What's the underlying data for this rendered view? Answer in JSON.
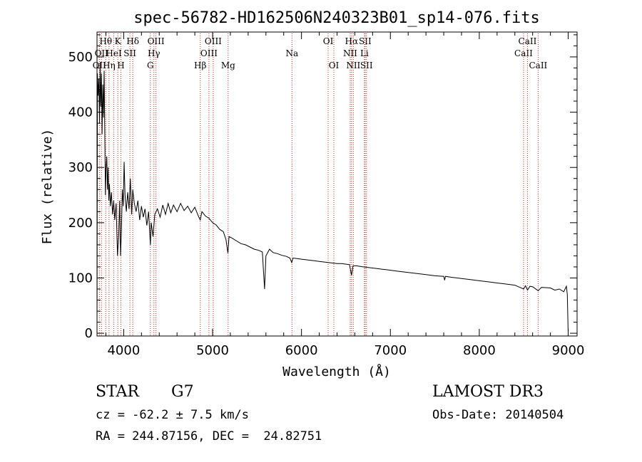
{
  "chart_data": {
    "type": "line",
    "title": "spec-56782-HD162506N240323B01_sp14-076.fits",
    "xlabel": "Wavelength (Å)",
    "ylabel": "Flux (relative)",
    "xlim": [
      3700,
      9100
    ],
    "ylim": [
      -5,
      545
    ],
    "xticks": [
      4000,
      5000,
      6000,
      7000,
      8000,
      9000
    ],
    "xtick_labels": [
      "4000",
      "5000",
      "6000",
      "7000",
      "8000",
      "9000"
    ],
    "yticks": [
      0,
      100,
      200,
      300,
      400,
      500
    ],
    "ytick_labels": [
      "0",
      "100",
      "200",
      "300",
      "400",
      "500"
    ],
    "grid": false,
    "series": [
      {
        "name": "flux",
        "points": [
          [
            3700,
            0
          ],
          [
            3705,
            470
          ],
          [
            3712,
            430
          ],
          [
            3720,
            460
          ],
          [
            3728,
            380
          ],
          [
            3735,
            490
          ],
          [
            3742,
            410
          ],
          [
            3750,
            470
          ],
          [
            3757,
            360
          ],
          [
            3765,
            450
          ],
          [
            3772,
            390
          ],
          [
            3780,
            475
          ],
          [
            3788,
            350
          ],
          [
            3795,
            250
          ],
          [
            3802,
            300
          ],
          [
            3810,
            320
          ],
          [
            3818,
            260
          ],
          [
            3825,
            300
          ],
          [
            3832,
            240
          ],
          [
            3840,
            270
          ],
          [
            3850,
            230
          ],
          [
            3862,
            255
          ],
          [
            3875,
            215
          ],
          [
            3888,
            240
          ],
          [
            3900,
            205
          ],
          [
            3915,
            235
          ],
          [
            3930,
            140
          ],
          [
            3945,
            180
          ],
          [
            3955,
            240
          ],
          [
            3965,
            140
          ],
          [
            3975,
            190
          ],
          [
            3985,
            260
          ],
          [
            3995,
            230
          ],
          [
            4005,
            310
          ],
          [
            4015,
            250
          ],
          [
            4030,
            220
          ],
          [
            4045,
            255
          ],
          [
            4060,
            225
          ],
          [
            4075,
            280
          ],
          [
            4090,
            215
          ],
          [
            4102,
            260
          ],
          [
            4120,
            235
          ],
          [
            4140,
            220
          ],
          [
            4160,
            240
          ],
          [
            4180,
            205
          ],
          [
            4200,
            230
          ],
          [
            4220,
            210
          ],
          [
            4240,
            225
          ],
          [
            4260,
            195
          ],
          [
            4280,
            220
          ],
          [
            4300,
            160
          ],
          [
            4310,
            200
          ],
          [
            4330,
            175
          ],
          [
            4350,
            215
          ],
          [
            4380,
            225
          ],
          [
            4410,
            210
          ],
          [
            4440,
            232
          ],
          [
            4470,
            215
          ],
          [
            4500,
            235
          ],
          [
            4530,
            218
          ],
          [
            4560,
            232
          ],
          [
            4600,
            220
          ],
          [
            4640,
            235
          ],
          [
            4680,
            222
          ],
          [
            4720,
            230
          ],
          [
            4760,
            218
          ],
          [
            4800,
            228
          ],
          [
            4840,
            212
          ],
          [
            4861,
            205
          ],
          [
            4880,
            220
          ],
          [
            4920,
            212
          ],
          [
            4960,
            208
          ],
          [
            5000,
            200
          ],
          [
            5040,
            196
          ],
          [
            5080,
            188
          ],
          [
            5120,
            184
          ],
          [
            5150,
            170
          ],
          [
            5172,
            145
          ],
          [
            5185,
            175
          ],
          [
            5220,
            172
          ],
          [
            5270,
            167
          ],
          [
            5320,
            162
          ],
          [
            5370,
            160
          ],
          [
            5420,
            156
          ],
          [
            5470,
            152
          ],
          [
            5520,
            150
          ],
          [
            5560,
            147
          ],
          [
            5575,
            105
          ],
          [
            5585,
            80
          ],
          [
            5600,
            140
          ],
          [
            5640,
            152
          ],
          [
            5680,
            146
          ],
          [
            5730,
            144
          ],
          [
            5780,
            141
          ],
          [
            5830,
            139
          ],
          [
            5870,
            136
          ],
          [
            5890,
            128
          ],
          [
            5905,
            136
          ],
          [
            5950,
            135
          ],
          [
            6000,
            134
          ],
          [
            6050,
            133
          ],
          [
            6100,
            132
          ],
          [
            6150,
            131
          ],
          [
            6200,
            130
          ],
          [
            6250,
            129
          ],
          [
            6300,
            128
          ],
          [
            6350,
            127
          ],
          [
            6400,
            126
          ],
          [
            6450,
            126
          ],
          [
            6500,
            125
          ],
          [
            6540,
            124
          ],
          [
            6563,
            105
          ],
          [
            6580,
            122
          ],
          [
            6620,
            122
          ],
          [
            6660,
            121
          ],
          [
            6700,
            120
          ],
          [
            6750,
            119
          ],
          [
            6800,
            118
          ],
          [
            6850,
            117
          ],
          [
            6900,
            116
          ],
          [
            6950,
            115
          ],
          [
            7000,
            114
          ],
          [
            7100,
            112
          ],
          [
            7200,
            110
          ],
          [
            7300,
            108
          ],
          [
            7400,
            106
          ],
          [
            7500,
            104
          ],
          [
            7600,
            103
          ],
          [
            7610,
            96
          ],
          [
            7620,
            103
          ],
          [
            7700,
            101
          ],
          [
            7800,
            99
          ],
          [
            7900,
            97
          ],
          [
            8000,
            95
          ],
          [
            8100,
            93
          ],
          [
            8200,
            91
          ],
          [
            8300,
            89
          ],
          [
            8400,
            87
          ],
          [
            8498,
            80
          ],
          [
            8520,
            86
          ],
          [
            8542,
            78
          ],
          [
            8570,
            85
          ],
          [
            8600,
            84
          ],
          [
            8662,
            77
          ],
          [
            8700,
            83
          ],
          [
            8800,
            82
          ],
          [
            8850,
            78
          ],
          [
            8900,
            80
          ],
          [
            8950,
            75
          ],
          [
            8980,
            85
          ],
          [
            8990,
            70
          ],
          [
            9000,
            0
          ]
        ]
      }
    ],
    "line_markers": [
      {
        "wavelength": 3727,
        "label": "OII",
        "row": 2
      },
      {
        "wavelength": 3750,
        "label": "OII",
        "row": 1
      },
      {
        "wavelength": 3798,
        "label": "Hθ",
        "row": 0
      },
      {
        "wavelength": 3835,
        "label": "Hη",
        "row": 2
      },
      {
        "wavelength": 3889,
        "label": "HeI",
        "row": 1
      },
      {
        "wavelength": 3934,
        "label": "K",
        "row": 0
      },
      {
        "wavelength": 3969,
        "label": "H",
        "row": 2
      },
      {
        "wavelength": 4070,
        "label": "SII",
        "row": 1
      },
      {
        "wavelength": 4102,
        "label": "Hδ",
        "row": 0
      },
      {
        "wavelength": 4300,
        "label": "G",
        "row": 2
      },
      {
        "wavelength": 4340,
        "label": "Hγ",
        "row": 1
      },
      {
        "wavelength": 4363,
        "label": "OIII",
        "row": 0
      },
      {
        "wavelength": 4861,
        "label": "Hβ",
        "row": 2
      },
      {
        "wavelength": 4959,
        "label": "OIII",
        "row": 1
      },
      {
        "wavelength": 5007,
        "label": "OIII",
        "row": 0
      },
      {
        "wavelength": 5175,
        "label": "Mg",
        "row": 2
      },
      {
        "wavelength": 5893,
        "label": "Na",
        "row": 1
      },
      {
        "wavelength": 6300,
        "label": "OI",
        "row": 0
      },
      {
        "wavelength": 6364,
        "label": "OI",
        "row": 2
      },
      {
        "wavelength": 6548,
        "label": "NII",
        "row": 1
      },
      {
        "wavelength": 6563,
        "label": "Hα",
        "row": 0
      },
      {
        "wavelength": 6583,
        "label": "NII",
        "row": 2
      },
      {
        "wavelength": 6708,
        "label": "Li",
        "row": 1
      },
      {
        "wavelength": 6716,
        "label": "SII",
        "row": 0
      },
      {
        "wavelength": 6731,
        "label": "SII",
        "row": 2
      },
      {
        "wavelength": 8498,
        "label": "CaII",
        "row": 1
      },
      {
        "wavelength": 8542,
        "label": "CaII",
        "row": 0
      },
      {
        "wavelength": 8662,
        "label": "CaII",
        "row": 2
      }
    ]
  },
  "info": {
    "object_class": "STAR",
    "subclass": "G7",
    "survey": "LAMOST DR3",
    "redshift": "cz = -62.2 ± 7.5 km/s",
    "obs_date": "Obs-Date: 20140504",
    "coords": "RA = 244.87156, DEC =  24.82751"
  },
  "colors": {
    "axis": "#000000",
    "spectrum": "#000000",
    "marker_line": "#cc2222",
    "background": "#ffffff"
  }
}
